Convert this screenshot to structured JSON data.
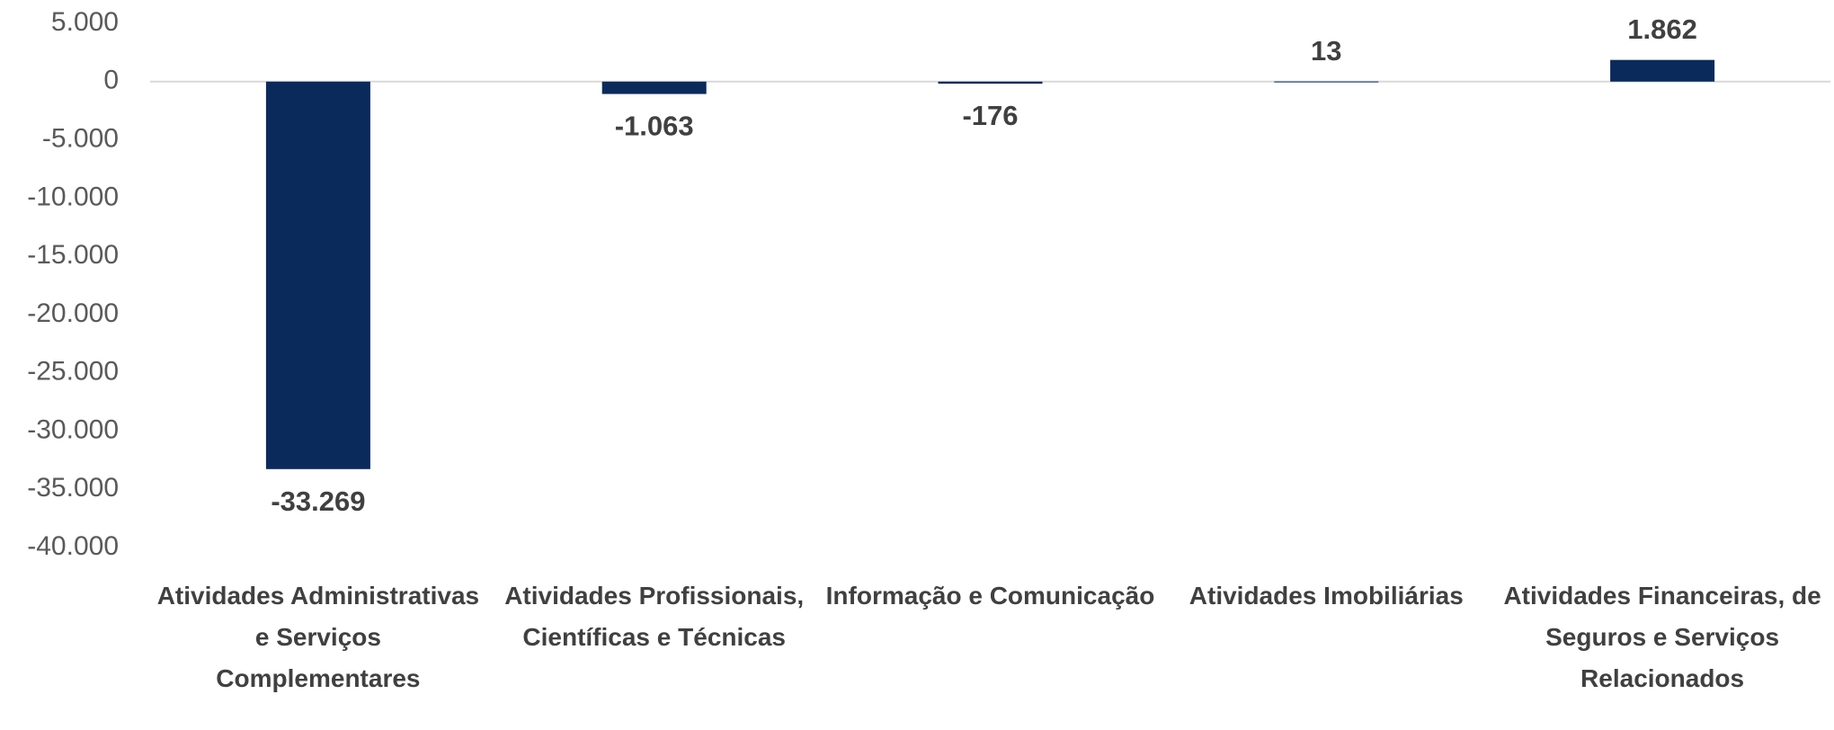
{
  "chart_data": {
    "type": "bar",
    "categories": [
      "Atividades Administrativas e Serviços Complementares",
      "Atividades Profissionais, Científicas e Técnicas",
      "Informação e Comunicação",
      "Atividades Imobiliárias",
      "Atividades Financeiras, de Seguros e Serviços Relacionados"
    ],
    "values": [
      -33269,
      -1063,
      -176,
      13,
      1862
    ],
    "value_labels": [
      "-33.269",
      "-1.063",
      "-176",
      "13",
      "1.862"
    ],
    "color": "#0b2a5c",
    "ylim": [
      -40000,
      5000
    ],
    "yticks": [
      {
        "value": -40000,
        "label": "-40.000"
      },
      {
        "value": -35000,
        "label": "-35.000"
      },
      {
        "value": -30000,
        "label": "-30.000"
      },
      {
        "value": -25000,
        "label": "-25.000"
      },
      {
        "value": -20000,
        "label": "-20.000"
      },
      {
        "value": -15000,
        "label": "-15.000"
      },
      {
        "value": -10000,
        "label": "-10.000"
      },
      {
        "value": -5000,
        "label": "-5.000"
      },
      0,
      {
        "value": 5000,
        "label": "5.000"
      }
    ],
    "grid": false
  }
}
